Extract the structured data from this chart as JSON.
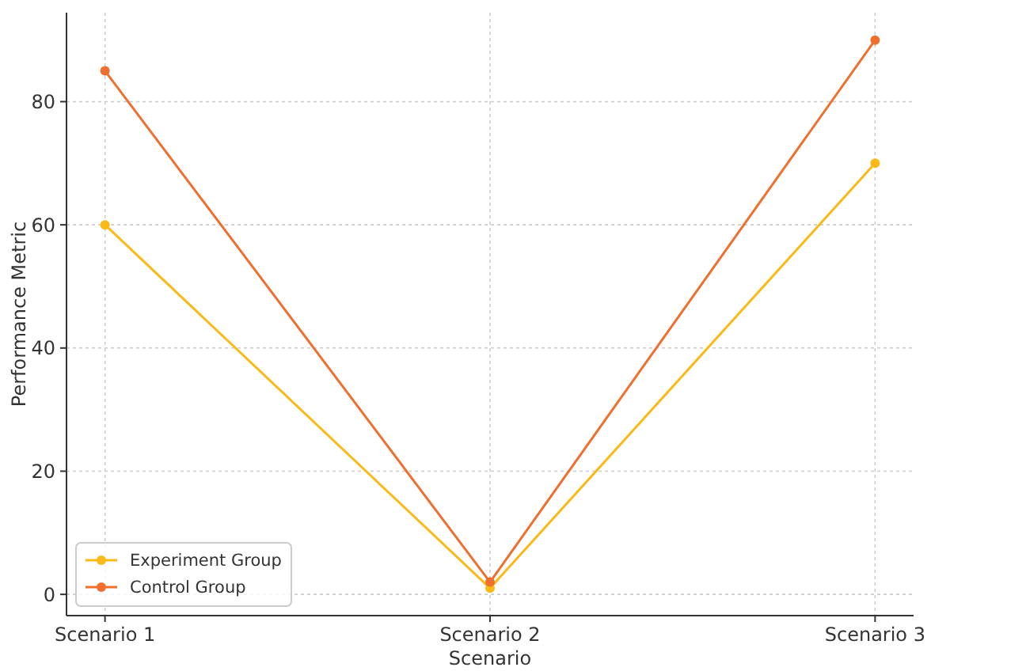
{
  "chart_data": {
    "type": "line",
    "xlabel": "Scenario",
    "ylabel": "Performance Metric",
    "categories": [
      "Scenario 1",
      "Scenario 2",
      "Scenario 3"
    ],
    "series": [
      {
        "name": "Experiment Group",
        "color": "#fbb917",
        "values": [
          60,
          1,
          70
        ]
      },
      {
        "name": "Control Group",
        "color": "#ef6f2e",
        "values": [
          85,
          2,
          90
        ]
      }
    ],
    "ylim": [
      -3.45,
      94.45
    ],
    "yticks": [
      0,
      20,
      40,
      60,
      80
    ],
    "grid": true,
    "legend": "bottom left",
    "marker": "circle",
    "line_style": "solid"
  }
}
